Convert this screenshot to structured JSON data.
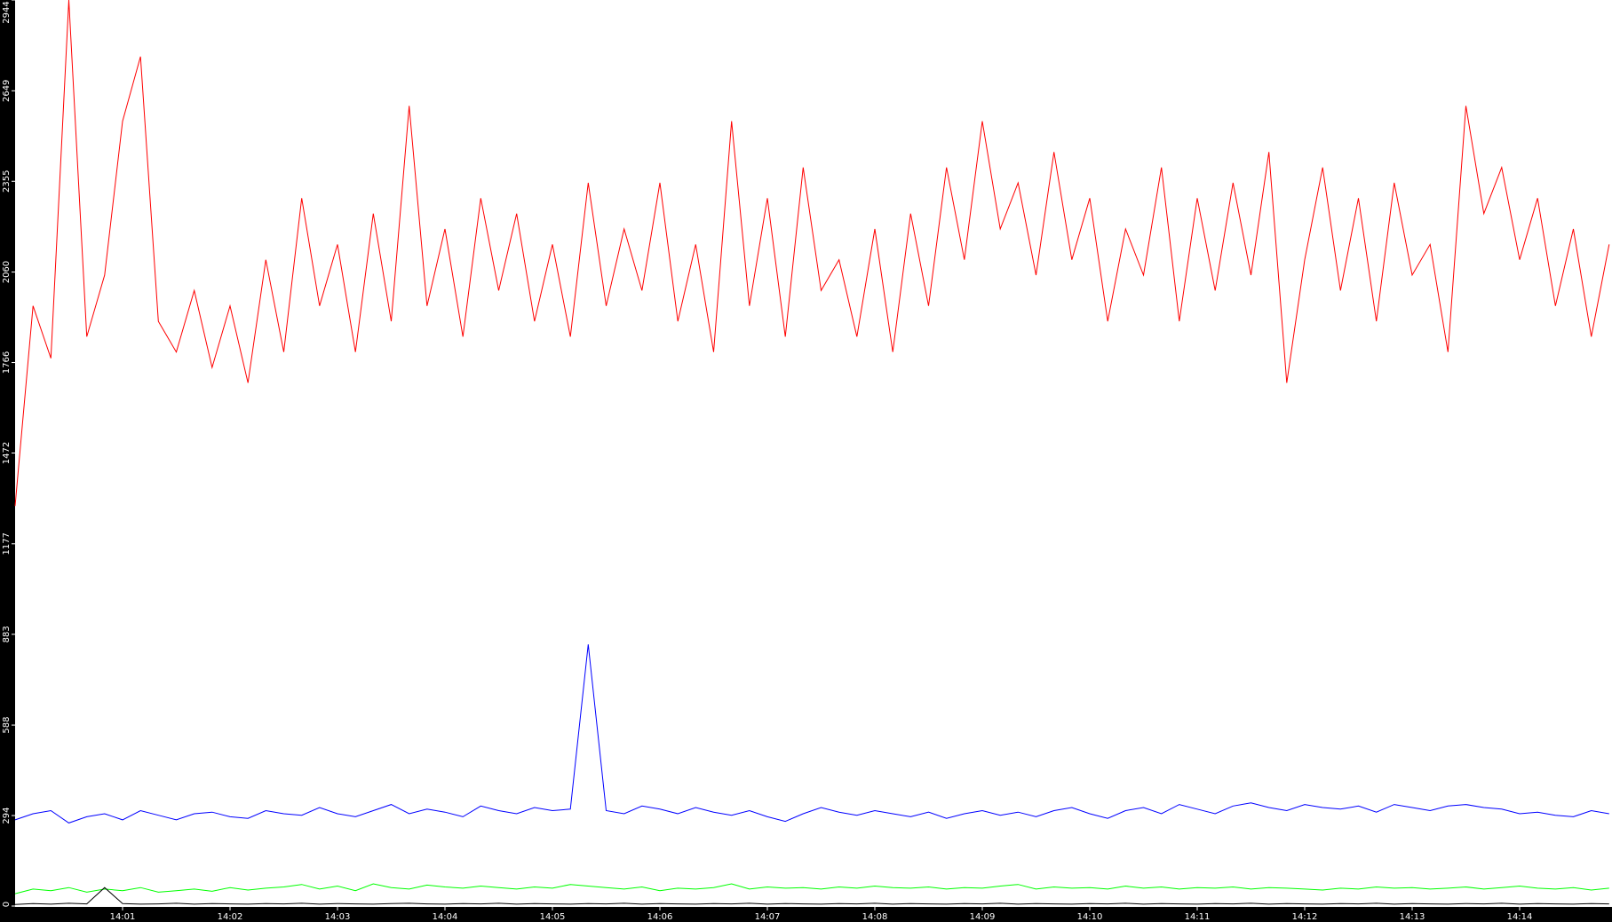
{
  "chart_data": {
    "type": "line",
    "title": "",
    "xlabel": "",
    "ylabel": "",
    "ylim": [
      0,
      2944
    ],
    "xlim": [
      "14:00:00",
      "14:14:52"
    ],
    "grid": false,
    "legend": "none",
    "background": "#ffffff",
    "axis_color": "#000000",
    "y_ticks": [
      "0",
      "294",
      "588",
      "883",
      "1177",
      "1472",
      "1766",
      "2060",
      "2355",
      "2649",
      "2944"
    ],
    "x_ticks": [
      "14:01",
      "14:02",
      "14:03",
      "14:04",
      "14:05",
      "14:06",
      "14:07",
      "14:08",
      "14:09",
      "14:10",
      "14:11",
      "14:12",
      "14:13",
      "14:14"
    ],
    "x_start": "14:00:00",
    "x_step_seconds": 10,
    "series": [
      {
        "color": "#ff0000",
        "values": [
          1300,
          1950,
          1780,
          2944,
          1850,
          2050,
          2550,
          2760,
          1900,
          1800,
          2000,
          1750,
          1950,
          1700,
          2100,
          1800,
          2300,
          1950,
          2150,
          1800,
          2250,
          1900,
          2600,
          1950,
          2200,
          1850,
          2300,
          2000,
          2250,
          1900,
          2150,
          1850,
          2350,
          1950,
          2200,
          2000,
          2350,
          1900,
          2150,
          1800,
          2550,
          1950,
          2300,
          1850,
          2400,
          2000,
          2100,
          1850,
          2200,
          1800,
          2250,
          1950,
          2400,
          2100,
          2550,
          2200,
          2350,
          2050,
          2450,
          2100,
          2300,
          1900,
          2200,
          2050,
          2400,
          1900,
          2300,
          2000,
          2350,
          2050,
          2450,
          1700,
          2100,
          2400,
          2000,
          2300,
          1900,
          2350,
          2050,
          2150,
          1800,
          2600,
          2250,
          2400,
          2100,
          2300,
          1950,
          2200,
          1850,
          2150
        ]
      },
      {
        "color": "#0000ff",
        "values": [
          280,
          300,
          310,
          270,
          290,
          300,
          280,
          310,
          295,
          280,
          300,
          305,
          290,
          285,
          310,
          300,
          295,
          320,
          300,
          290,
          310,
          330,
          300,
          315,
          305,
          290,
          325,
          310,
          300,
          320,
          310,
          315,
          850,
          310,
          300,
          325,
          315,
          300,
          320,
          305,
          295,
          310,
          290,
          275,
          300,
          320,
          305,
          295,
          310,
          300,
          290,
          305,
          285,
          300,
          310,
          295,
          305,
          290,
          310,
          320,
          300,
          285,
          310,
          320,
          300,
          330,
          315,
          300,
          325,
          335,
          320,
          310,
          330,
          320,
          315,
          325,
          305,
          330,
          320,
          310,
          325,
          330,
          320,
          315,
          300,
          305,
          295,
          290,
          310,
          300
        ]
      },
      {
        "color": "#00ff00",
        "values": [
          40,
          55,
          50,
          60,
          45,
          55,
          50,
          60,
          45,
          50,
          55,
          48,
          60,
          52,
          58,
          62,
          70,
          55,
          65,
          50,
          72,
          60,
          55,
          68,
          62,
          58,
          65,
          60,
          55,
          62,
          58,
          70,
          65,
          60,
          55,
          62,
          50,
          58,
          55,
          60,
          72,
          55,
          62,
          58,
          60,
          55,
          62,
          58,
          65,
          60,
          58,
          62,
          55,
          60,
          58,
          65,
          70,
          55,
          62,
          58,
          60,
          55,
          65,
          58,
          62,
          55,
          60,
          58,
          62,
          55,
          60,
          58,
          55,
          52,
          58,
          55,
          62,
          58,
          60,
          55,
          58,
          62,
          55,
          60,
          65,
          58,
          55,
          60,
          52,
          58
        ]
      },
      {
        "color": "#000000",
        "values": [
          5,
          8,
          6,
          9,
          7,
          60,
          8,
          6,
          7,
          9,
          6,
          8,
          7,
          6,
          8,
          7,
          9,
          6,
          8,
          7,
          6,
          8,
          9,
          7,
          6,
          8,
          7,
          9,
          6,
          8,
          7,
          6,
          8,
          7,
          9,
          6,
          8,
          7,
          6,
          8,
          7,
          9,
          6,
          8,
          7,
          6,
          8,
          7,
          9,
          6,
          8,
          7,
          6,
          8,
          7,
          9,
          6,
          8,
          7,
          6,
          8,
          7,
          9,
          6,
          8,
          7,
          6,
          8,
          7,
          9,
          6,
          8,
          7,
          6,
          8,
          7,
          9,
          6,
          8,
          7,
          6,
          8,
          7,
          9,
          6,
          8,
          7,
          6,
          8,
          7
        ]
      }
    ]
  }
}
